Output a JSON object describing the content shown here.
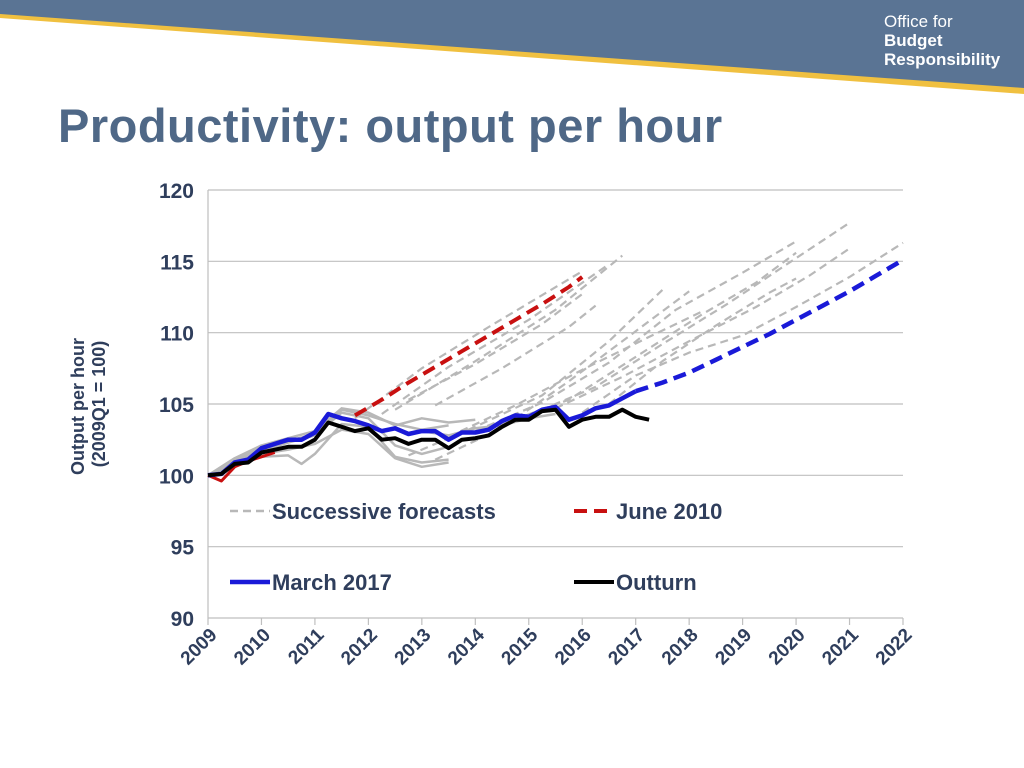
{
  "logo": {
    "line1": "Office for",
    "line2": "Budget",
    "line3": "Responsibility"
  },
  "page": {
    "title": "Productivity: output per hour"
  },
  "colors": {
    "header_blue": "#5a7494",
    "header_gold": "#f0c040",
    "title": "#4f6887",
    "axis_text": "#2f3e5c",
    "forecast_gray": "#b8b8b8",
    "june2010": "#c81010",
    "march2017": "#1a1ad8",
    "outturn": "#000000"
  },
  "chart_data": {
    "type": "line",
    "title": "",
    "xlabel": "",
    "ylabel": "Output per hour (2009Q1 = 100)",
    "ylabel_lines": [
      "Output per hour",
      "(2009Q1 = 100)"
    ],
    "xlim": [
      2009,
      2022
    ],
    "ylim": [
      90,
      120
    ],
    "y_ticks": [
      90,
      95,
      100,
      105,
      110,
      115,
      120
    ],
    "x_ticks": [
      "2009",
      "2010",
      "2011",
      "2012",
      "2013",
      "2014",
      "2015",
      "2016",
      "2017",
      "2018",
      "2019",
      "2020",
      "2021",
      "2022"
    ],
    "grid": true,
    "legend_position": "inside-bottom-left",
    "legend": [
      {
        "key": "forecasts",
        "label": "Successive forecasts"
      },
      {
        "key": "june2010",
        "label": "June 2010"
      },
      {
        "key": "march2017",
        "label": "March 2017"
      },
      {
        "key": "outturn",
        "label": "Outturn"
      }
    ],
    "series": {
      "outturn": [
        [
          2009.0,
          100.0
        ],
        [
          2009.25,
          100.1
        ],
        [
          2009.5,
          100.8
        ],
        [
          2009.75,
          100.9
        ],
        [
          2010.0,
          101.6
        ],
        [
          2010.25,
          101.8
        ],
        [
          2010.5,
          102.0
        ],
        [
          2010.75,
          102.0
        ],
        [
          2011.0,
          102.5
        ],
        [
          2011.25,
          103.7
        ],
        [
          2011.5,
          103.4
        ],
        [
          2011.75,
          103.1
        ],
        [
          2012.0,
          103.3
        ],
        [
          2012.25,
          102.5
        ],
        [
          2012.5,
          102.6
        ],
        [
          2012.75,
          102.2
        ],
        [
          2013.0,
          102.5
        ],
        [
          2013.25,
          102.5
        ],
        [
          2013.5,
          101.9
        ],
        [
          2013.75,
          102.5
        ],
        [
          2014.0,
          102.6
        ],
        [
          2014.25,
          102.8
        ],
        [
          2014.5,
          103.4
        ],
        [
          2014.75,
          103.9
        ],
        [
          2015.0,
          103.9
        ],
        [
          2015.25,
          104.5
        ],
        [
          2015.5,
          104.6
        ],
        [
          2015.75,
          103.4
        ],
        [
          2016.0,
          103.9
        ],
        [
          2016.25,
          104.1
        ],
        [
          2016.5,
          104.1
        ],
        [
          2016.75,
          104.6
        ],
        [
          2017.0,
          104.1
        ],
        [
          2017.25,
          103.9
        ]
      ],
      "march2017_outturn": [
        [
          2009.0,
          100.0
        ],
        [
          2009.25,
          100.1
        ],
        [
          2009.5,
          100.9
        ],
        [
          2009.75,
          101.1
        ],
        [
          2010.0,
          101.9
        ],
        [
          2010.25,
          102.2
        ],
        [
          2010.5,
          102.5
        ],
        [
          2010.75,
          102.5
        ],
        [
          2011.0,
          103.0
        ],
        [
          2011.25,
          104.3
        ],
        [
          2011.5,
          104.0
        ],
        [
          2011.75,
          103.8
        ],
        [
          2012.0,
          103.5
        ],
        [
          2012.25,
          103.1
        ],
        [
          2012.5,
          103.3
        ],
        [
          2012.75,
          102.9
        ],
        [
          2013.0,
          103.1
        ],
        [
          2013.25,
          103.1
        ],
        [
          2013.5,
          102.5
        ],
        [
          2013.75,
          103.0
        ],
        [
          2014.0,
          103.0
        ],
        [
          2014.25,
          103.2
        ],
        [
          2014.5,
          103.8
        ],
        [
          2014.75,
          104.2
        ],
        [
          2015.0,
          104.1
        ],
        [
          2015.25,
          104.6
        ],
        [
          2015.5,
          104.8
        ],
        [
          2015.75,
          103.9
        ],
        [
          2016.0,
          104.2
        ],
        [
          2016.25,
          104.7
        ],
        [
          2016.5,
          104.9
        ],
        [
          2016.75,
          105.4
        ],
        [
          2017.0,
          105.9
        ]
      ],
      "march2017_forecast": [
        [
          2017.0,
          105.9
        ],
        [
          2017.5,
          106.5
        ],
        [
          2018.0,
          107.2
        ],
        [
          2018.5,
          108.1
        ],
        [
          2019.0,
          109.0
        ],
        [
          2019.5,
          109.9
        ],
        [
          2020.0,
          110.9
        ],
        [
          2020.5,
          111.9
        ],
        [
          2021.0,
          112.9
        ],
        [
          2021.5,
          114.0
        ],
        [
          2022.0,
          115.1
        ]
      ],
      "june2010_outturn": [
        [
          2009.0,
          100.0
        ],
        [
          2009.25,
          99.6
        ],
        [
          2009.5,
          100.6
        ],
        [
          2009.75,
          101.0
        ],
        [
          2010.0,
          101.3
        ],
        [
          2010.25,
          101.6
        ]
      ],
      "june2010_forecast": [
        [
          2011.75,
          104.2
        ],
        [
          2012.25,
          105.3
        ],
        [
          2012.75,
          106.5
        ],
        [
          2013.25,
          107.6
        ],
        [
          2013.75,
          108.7
        ],
        [
          2014.25,
          109.8
        ],
        [
          2014.75,
          110.9
        ],
        [
          2015.25,
          112.0
        ],
        [
          2015.75,
          113.2
        ],
        [
          2016.0,
          113.9
        ]
      ],
      "forecast_outturns": [
        [
          [
            2009.0,
            100.0
          ],
          [
            2009.5,
            100.9
          ],
          [
            2010.0,
            101.3
          ],
          [
            2010.5,
            101.4
          ],
          [
            2010.75,
            100.8
          ],
          [
            2011.0,
            101.5
          ],
          [
            2011.5,
            103.6
          ],
          [
            2012.0,
            103.4
          ],
          [
            2012.5,
            101.3
          ],
          [
            2013.0,
            100.9
          ],
          [
            2013.5,
            101.1
          ]
        ],
        [
          [
            2009.0,
            100.0
          ],
          [
            2009.5,
            101.0
          ],
          [
            2010.0,
            101.7
          ],
          [
            2010.5,
            102.3
          ],
          [
            2011.0,
            102.8
          ],
          [
            2011.5,
            104.4
          ],
          [
            2012.0,
            104.0
          ],
          [
            2012.5,
            102.1
          ],
          [
            2013.0,
            101.5
          ],
          [
            2013.5,
            102.0
          ]
        ],
        [
          [
            2009.0,
            100.0
          ],
          [
            2009.5,
            101.2
          ],
          [
            2010.0,
            102.1
          ],
          [
            2010.5,
            102.6
          ],
          [
            2011.0,
            103.1
          ],
          [
            2011.5,
            104.7
          ],
          [
            2012.0,
            104.4
          ],
          [
            2012.5,
            103.5
          ],
          [
            2013.0,
            104.0
          ],
          [
            2013.5,
            103.7
          ],
          [
            2014.0,
            103.9
          ]
        ],
        [
          [
            2009.0,
            100.0
          ],
          [
            2009.5,
            100.8
          ],
          [
            2010.0,
            101.5
          ],
          [
            2010.5,
            101.8
          ],
          [
            2011.0,
            102.2
          ],
          [
            2011.5,
            103.2
          ],
          [
            2012.0,
            102.9
          ],
          [
            2012.5,
            101.2
          ],
          [
            2013.0,
            100.6
          ],
          [
            2013.5,
            100.9
          ]
        ],
        [
          [
            2009.0,
            100.0
          ],
          [
            2009.5,
            101.1
          ],
          [
            2010.0,
            101.9
          ],
          [
            2010.5,
            102.4
          ],
          [
            2011.0,
            102.9
          ],
          [
            2011.5,
            104.6
          ],
          [
            2012.0,
            104.2
          ],
          [
            2012.5,
            103.6
          ],
          [
            2013.0,
            103.2
          ],
          [
            2013.5,
            103.5
          ]
        ],
        [
          [
            2013.0,
            103.1
          ],
          [
            2013.5,
            102.8
          ],
          [
            2014.0,
            103.3
          ],
          [
            2014.5,
            103.5
          ],
          [
            2015.0,
            104.0
          ],
          [
            2015.5,
            104.3
          ]
        ]
      ],
      "forecasts": [
        [
          [
            2011.75,
            104.0
          ],
          [
            2013.0,
            107.5
          ],
          [
            2014.25,
            110.4
          ],
          [
            2016.0,
            114.3
          ]
        ],
        [
          [
            2012.25,
            104.3
          ],
          [
            2013.5,
            107.6
          ],
          [
            2015.0,
            110.9
          ],
          [
            2016.5,
            114.8
          ]
        ],
        [
          [
            2012.5,
            104.6
          ],
          [
            2014.0,
            108.0
          ],
          [
            2015.5,
            111.6
          ],
          [
            2016.75,
            115.4
          ]
        ],
        [
          [
            2012.75,
            105.3
          ],
          [
            2014.0,
            107.8
          ],
          [
            2015.25,
            110.6
          ],
          [
            2016.0,
            112.7
          ]
        ],
        [
          [
            2013.25,
            104.9
          ],
          [
            2014.5,
            107.5
          ],
          [
            2015.75,
            110.4
          ],
          [
            2016.25,
            111.9
          ]
        ],
        [
          [
            2012.75,
            101.4
          ],
          [
            2014.0,
            103.4
          ],
          [
            2015.25,
            105.6
          ],
          [
            2016.5,
            109.4
          ],
          [
            2017.5,
            113.0
          ]
        ],
        [
          [
            2013.25,
            101.1
          ],
          [
            2014.5,
            103.3
          ],
          [
            2015.75,
            106.6
          ],
          [
            2017.0,
            110.1
          ],
          [
            2018.0,
            112.9
          ]
        ],
        [
          [
            2013.5,
            102.7
          ],
          [
            2014.75,
            104.9
          ],
          [
            2016.0,
            107.4
          ],
          [
            2017.25,
            109.7
          ],
          [
            2018.25,
            111.5
          ]
        ],
        [
          [
            2014.0,
            103.1
          ],
          [
            2015.25,
            105.1
          ],
          [
            2016.5,
            107.9
          ],
          [
            2017.75,
            111.6
          ],
          [
            2019.0,
            114.2
          ],
          [
            2020.0,
            116.4
          ]
        ],
        [
          [
            2014.5,
            103.6
          ],
          [
            2015.75,
            105.3
          ],
          [
            2017.0,
            108.3
          ],
          [
            2018.25,
            111.3
          ],
          [
            2019.25,
            113.5
          ],
          [
            2020.0,
            115.6
          ]
        ],
        [
          [
            2015.0,
            104.2
          ],
          [
            2016.25,
            106.2
          ],
          [
            2017.5,
            109.2
          ],
          [
            2018.75,
            112.1
          ],
          [
            2019.75,
            114.6
          ],
          [
            2021.0,
            117.7
          ]
        ],
        [
          [
            2015.5,
            104.7
          ],
          [
            2016.75,
            106.9
          ],
          [
            2018.0,
            109.4
          ],
          [
            2019.25,
            111.8
          ],
          [
            2020.25,
            114.0
          ],
          [
            2021.0,
            115.9
          ]
        ],
        [
          [
            2016.0,
            104.4
          ],
          [
            2017.0,
            107.0
          ],
          [
            2018.0,
            108.6
          ],
          [
            2019.0,
            109.8
          ],
          [
            2020.0,
            111.8
          ],
          [
            2021.0,
            113.9
          ],
          [
            2022.0,
            116.3
          ]
        ],
        [
          [
            2016.5,
            105.0
          ],
          [
            2017.5,
            108.0
          ],
          [
            2018.5,
            110.5
          ],
          [
            2019.5,
            112.8
          ],
          [
            2020.0,
            113.8
          ]
        ]
      ]
    }
  }
}
